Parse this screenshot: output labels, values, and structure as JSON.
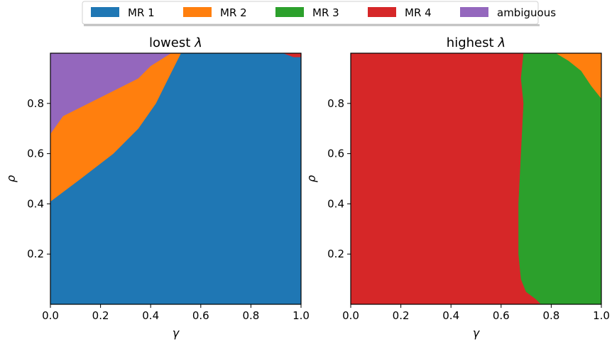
{
  "legend": {
    "items": [
      {
        "label": "MR 1",
        "color": "#1f77b4"
      },
      {
        "label": "MR 2",
        "color": "#ff7f0e"
      },
      {
        "label": "MR 3",
        "color": "#2ca02c"
      },
      {
        "label": "MR 4",
        "color": "#d62728"
      },
      {
        "label": "ambiguous",
        "color": "#9467bd"
      }
    ],
    "placement": "top-center"
  },
  "chart_data": [
    {
      "type": "heatmap",
      "title_prefix": "lowest",
      "title_symbol": "λ",
      "xlabel": "γ",
      "ylabel": "ρ",
      "xlim": [
        0,
        1
      ],
      "ylim": [
        0,
        1
      ],
      "xticks": [
        "0.0",
        "0.2",
        "0.4",
        "0.6",
        "0.8",
        "1.0"
      ],
      "yticks": [
        "0.2",
        "0.4",
        "0.6",
        "0.8"
      ],
      "grid": false,
      "regions": [
        {
          "label": "MR 1",
          "color": "#1f77b4",
          "polygon": [
            [
              0,
              0
            ],
            [
              1,
              0
            ],
            [
              1,
              0.985
            ],
            [
              0.93,
              1.0
            ],
            [
              0.52,
              1.0
            ],
            [
              0.47,
              0.9
            ],
            [
              0.42,
              0.8
            ],
            [
              0.35,
              0.7
            ],
            [
              0.25,
              0.6
            ],
            [
              0.12,
              0.5
            ],
            [
              0.0,
              0.41
            ]
          ]
        },
        {
          "label": "MR 2",
          "color": "#ff7f0e",
          "polygon": [
            [
              0,
              0.41
            ],
            [
              0.12,
              0.5
            ],
            [
              0.25,
              0.6
            ],
            [
              0.35,
              0.7
            ],
            [
              0.42,
              0.8
            ],
            [
              0.47,
              0.9
            ],
            [
              0.52,
              1.0
            ],
            [
              0.48,
              1.0
            ],
            [
              0.4,
              0.95
            ],
            [
              0.35,
              0.9
            ],
            [
              0.25,
              0.85
            ],
            [
              0.15,
              0.8
            ],
            [
              0.05,
              0.75
            ],
            [
              0.0,
              0.68
            ]
          ]
        },
        {
          "label": "ambiguous",
          "color": "#9467bd",
          "polygon": [
            [
              0,
              0.68
            ],
            [
              0.05,
              0.75
            ],
            [
              0.15,
              0.8
            ],
            [
              0.25,
              0.85
            ],
            [
              0.35,
              0.9
            ],
            [
              0.4,
              0.95
            ],
            [
              0.48,
              1.0
            ],
            [
              0,
              1.0
            ]
          ]
        },
        {
          "label": "MR 4",
          "color": "#d62728",
          "polygon": [
            [
              0.93,
              1.0
            ],
            [
              1.0,
              1.0
            ],
            [
              1.0,
              0.985
            ],
            [
              0.97,
              0.985
            ]
          ]
        }
      ]
    },
    {
      "type": "heatmap",
      "title_prefix": "highest",
      "title_symbol": "λ",
      "xlabel": "γ",
      "ylabel": "ρ",
      "xlim": [
        0,
        1
      ],
      "ylim": [
        0,
        1
      ],
      "xticks": [
        "0.0",
        "0.2",
        "0.4",
        "0.6",
        "0.8",
        "1.0"
      ],
      "yticks": [
        "0.2",
        "0.4",
        "0.6",
        "0.8"
      ],
      "grid": false,
      "regions": [
        {
          "label": "MR 4",
          "color": "#d62728",
          "polygon": [
            [
              0,
              0
            ],
            [
              0.76,
              0
            ],
            [
              0.74,
              0.02
            ],
            [
              0.7,
              0.05
            ],
            [
              0.68,
              0.1
            ],
            [
              0.67,
              0.2
            ],
            [
              0.67,
              0.4
            ],
            [
              0.68,
              0.6
            ],
            [
              0.69,
              0.8
            ],
            [
              0.68,
              0.9
            ],
            [
              0.69,
              1.0
            ],
            [
              0,
              1.0
            ]
          ]
        },
        {
          "label": "MR 3",
          "color": "#2ca02c",
          "polygon": [
            [
              0.76,
              0
            ],
            [
              1.0,
              0
            ],
            [
              1.0,
              0.82
            ],
            [
              0.96,
              0.87
            ],
            [
              0.92,
              0.93
            ],
            [
              0.87,
              0.97
            ],
            [
              0.82,
              1.0
            ],
            [
              0.69,
              1.0
            ],
            [
              0.68,
              0.9
            ],
            [
              0.69,
              0.8
            ],
            [
              0.68,
              0.6
            ],
            [
              0.67,
              0.4
            ],
            [
              0.67,
              0.2
            ],
            [
              0.68,
              0.1
            ],
            [
              0.7,
              0.05
            ],
            [
              0.74,
              0.02
            ]
          ]
        },
        {
          "label": "MR 2",
          "color": "#ff7f0e",
          "polygon": [
            [
              0.82,
              1.0
            ],
            [
              0.87,
              0.97
            ],
            [
              0.92,
              0.93
            ],
            [
              0.96,
              0.87
            ],
            [
              1.0,
              0.82
            ],
            [
              1.0,
              1.0
            ]
          ]
        }
      ]
    }
  ]
}
